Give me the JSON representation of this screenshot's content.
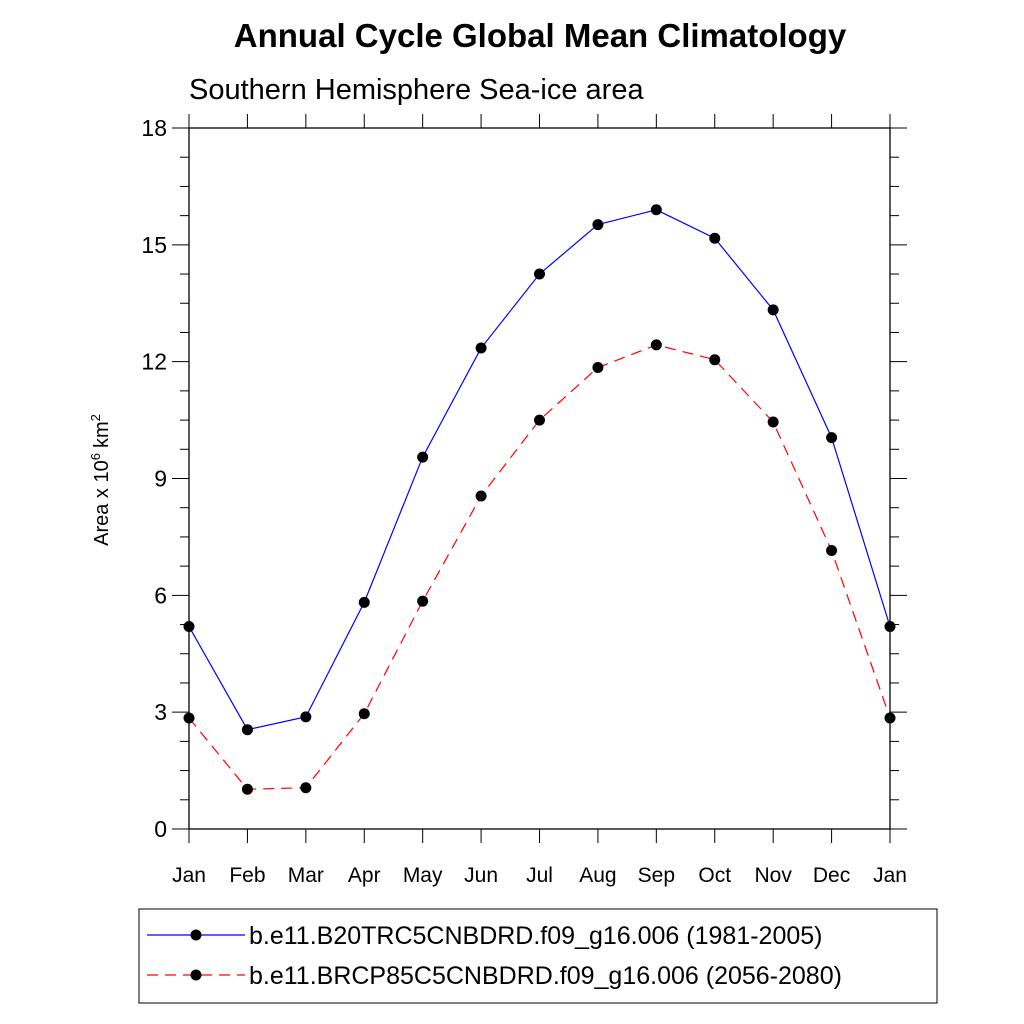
{
  "chart_data": {
    "type": "line",
    "title": "Annual Cycle Global Mean Climatology",
    "subtitle": "Southern Hemisphere Sea-ice area",
    "xlabel": "",
    "ylabel": "Area x 10",
    "ylabel_exponent": "6",
    "ylabel_unit": "km",
    "ylabel_unit_exponent": "2",
    "categories": [
      "Jan",
      "Feb",
      "Mar",
      "Apr",
      "May",
      "Jun",
      "Jul",
      "Aug",
      "Sep",
      "Oct",
      "Nov",
      "Dec",
      "Jan"
    ],
    "ylim": [
      0,
      18
    ],
    "yticks": [
      0,
      3,
      6,
      9,
      12,
      15,
      18
    ],
    "grid": false,
    "legend_position": "bottom",
    "series": [
      {
        "name": "b.e11.B20TRC5CNBDRD.f09_g16.006 (1981-2005)",
        "color": "#0000ff",
        "dash": "solid",
        "values": [
          5.2,
          2.55,
          2.88,
          5.82,
          9.55,
          12.35,
          14.25,
          15.52,
          15.9,
          15.17,
          13.33,
          10.05,
          5.2
        ]
      },
      {
        "name": "b.e11.BRCP85C5CNBDRD.f09_g16.006 (2056-2080)",
        "color": "#ff0000",
        "dash": "dashed",
        "values": [
          2.85,
          1.02,
          1.06,
          2.96,
          5.85,
          8.55,
          10.5,
          11.85,
          12.43,
          12.05,
          10.45,
          7.15,
          2.85
        ]
      }
    ]
  }
}
